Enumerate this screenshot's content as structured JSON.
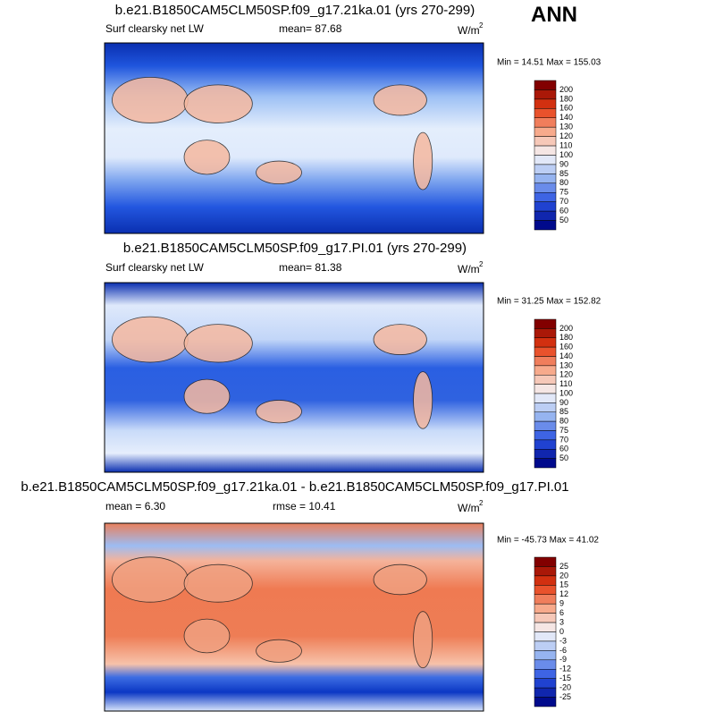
{
  "header": {
    "season": "ANN"
  },
  "panels": [
    {
      "title": "b.e21.B1850CAM5CLM50SP.f09_g17.21ka.01 (yrs 270-299)",
      "left": "Surf clearsky net LW",
      "center": "mean=  87.68",
      "units": "W/m",
      "units_sup": "2",
      "stats": "Min =  14.51 Max = 155.03",
      "colorbar": [
        "200",
        "180",
        "160",
        "140",
        "130",
        "120",
        "110",
        "100",
        "90",
        "85",
        "80",
        "75",
        "70",
        "60",
        "50"
      ]
    },
    {
      "title": "b.e21.B1850CAM5CLM50SP.f09_g17.PI.01 (yrs 270-299)",
      "left": "Surf clearsky net LW",
      "center": "mean=  81.38",
      "units": "W/m",
      "units_sup": "2",
      "stats": "Min =  31.25 Max = 152.82",
      "colorbar": [
        "200",
        "180",
        "160",
        "140",
        "130",
        "120",
        "110",
        "100",
        "90",
        "85",
        "80",
        "75",
        "70",
        "60",
        "50"
      ]
    },
    {
      "title": "b.e21.B1850CAM5CLM50SP.f09_g17.21ka.01 - b.e21.B1850CAM5CLM50SP.f09_g17.PI.01",
      "left": "mean =  6.30",
      "center": "rmse =  10.41",
      "units": "W/m",
      "units_sup": "2",
      "stats": "Min = -45.73 Max =  41.02",
      "colorbar": [
        "25",
        "20",
        "15",
        "12",
        "9",
        "6",
        "3",
        "0",
        "-3",
        "-6",
        "-9",
        "-12",
        "-15",
        "-20",
        "-25"
      ]
    }
  ]
}
